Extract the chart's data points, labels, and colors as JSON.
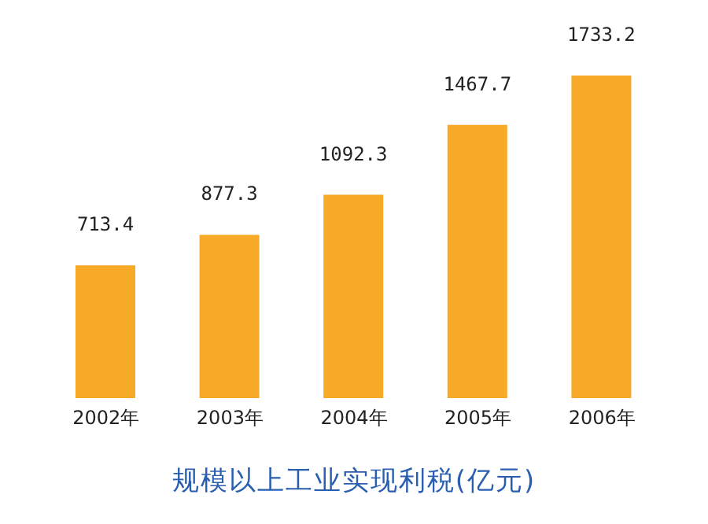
{
  "chart_data": {
    "type": "bar",
    "title": "规模以上工业实现利税(亿元)",
    "categories": [
      "2002年",
      "2003年",
      "2004年",
      "2005年",
      "2006年"
    ],
    "values": [
      713.4,
      877.3,
      1092.3,
      1467.7,
      1733.2
    ],
    "color": "#f7a928",
    "data_labels": true,
    "grid": false,
    "legend": false
  }
}
